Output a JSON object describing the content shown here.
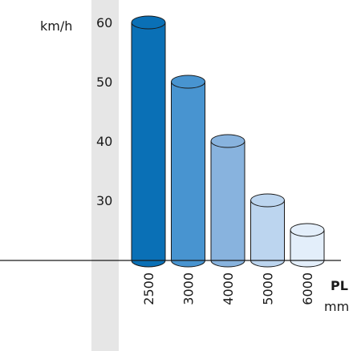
{
  "chart_data": {
    "type": "bar",
    "categories": [
      "2500",
      "3000",
      "4000",
      "5000",
      "6000"
    ],
    "values": [
      60,
      50,
      40,
      30,
      25
    ],
    "y_unit": "km/h",
    "x_label": "PL",
    "x_unit": "mm",
    "y_ticks": [
      30,
      40,
      50,
      60
    ],
    "ylim": [
      20,
      60
    ],
    "grid": false,
    "colors": [
      "#0a70b6",
      "#4894d0",
      "#88b3de",
      "#bcd5ef",
      "#e3eefa"
    ],
    "stroke": "#1a1a1a",
    "axis_band_color": "#e6e6e6"
  }
}
